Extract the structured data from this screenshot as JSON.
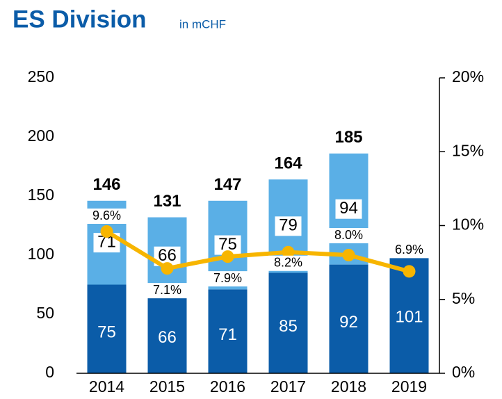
{
  "chart_data": {
    "type": "bar",
    "title": "ES Division",
    "subtitle": "in mCHF",
    "categories": [
      "2014",
      "2015",
      "2016",
      "2017",
      "2018",
      "2019"
    ],
    "series": [
      {
        "name": "base",
        "color": "#0b5ca8",
        "values": [
          75,
          66,
          71,
          85,
          92,
          101
        ]
      },
      {
        "name": "upper",
        "color": "#5aafe6",
        "values": [
          71,
          66,
          75,
          79,
          94,
          null
        ]
      },
      {
        "name": "margin",
        "type": "line",
        "axis": "y2",
        "color": "#f7b500",
        "values": [
          9.6,
          7.1,
          7.9,
          8.2,
          8.0,
          6.9
        ],
        "value_labels": [
          "9.6%",
          "7.1%",
          "7.9%",
          "8.2%",
          "8.0%",
          "6.9%"
        ]
      }
    ],
    "totals": [
      146,
      131,
      147,
      164,
      185,
      null
    ],
    "ylim": [
      0,
      250
    ],
    "yticks": [
      0,
      50,
      100,
      150,
      200,
      250
    ],
    "y2lim": [
      0,
      20
    ],
    "y2ticks": [
      {
        "value": 0,
        "label": "0%"
      },
      {
        "value": 5,
        "label": "5%"
      },
      {
        "value": 10,
        "label": "10%"
      },
      {
        "value": 15,
        "label": "15%"
      },
      {
        "value": 20,
        "label": "20%"
      }
    ]
  }
}
